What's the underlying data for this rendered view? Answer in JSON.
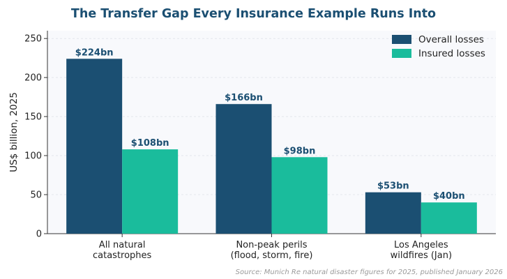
{
  "title": "The Transfer Gap Every Insurance Example Runs Into",
  "source": "Source: Munich Re natural disaster figures for 2025, published January 2026",
  "chart_data": {
    "type": "bar",
    "title": "The Transfer Gap Every Insurance Example Runs Into",
    "ylabel": "US$ billion, 2025",
    "xlabel": "",
    "ylim": [
      0,
      260
    ],
    "yticks": [
      0,
      50,
      100,
      150,
      200,
      250
    ],
    "grid": true,
    "legend_position": "top-right",
    "categories": [
      [
        "All natural",
        "catastrophes"
      ],
      [
        "Non-peak perils",
        "(flood, storm, fire)"
      ],
      [
        "Los Angeles",
        "wildfires (Jan)"
      ]
    ],
    "series": [
      {
        "name": "Overall losses",
        "color": "#1b4f72",
        "values": [
          224,
          166,
          53
        ],
        "labels": [
          "$224bn",
          "$166bn",
          "$53bn"
        ]
      },
      {
        "name": "Insured losses",
        "color": "#1abc9c",
        "values": [
          108,
          98,
          40
        ],
        "labels": [
          "$108bn",
          "$98bn",
          "$40bn"
        ]
      }
    ]
  }
}
